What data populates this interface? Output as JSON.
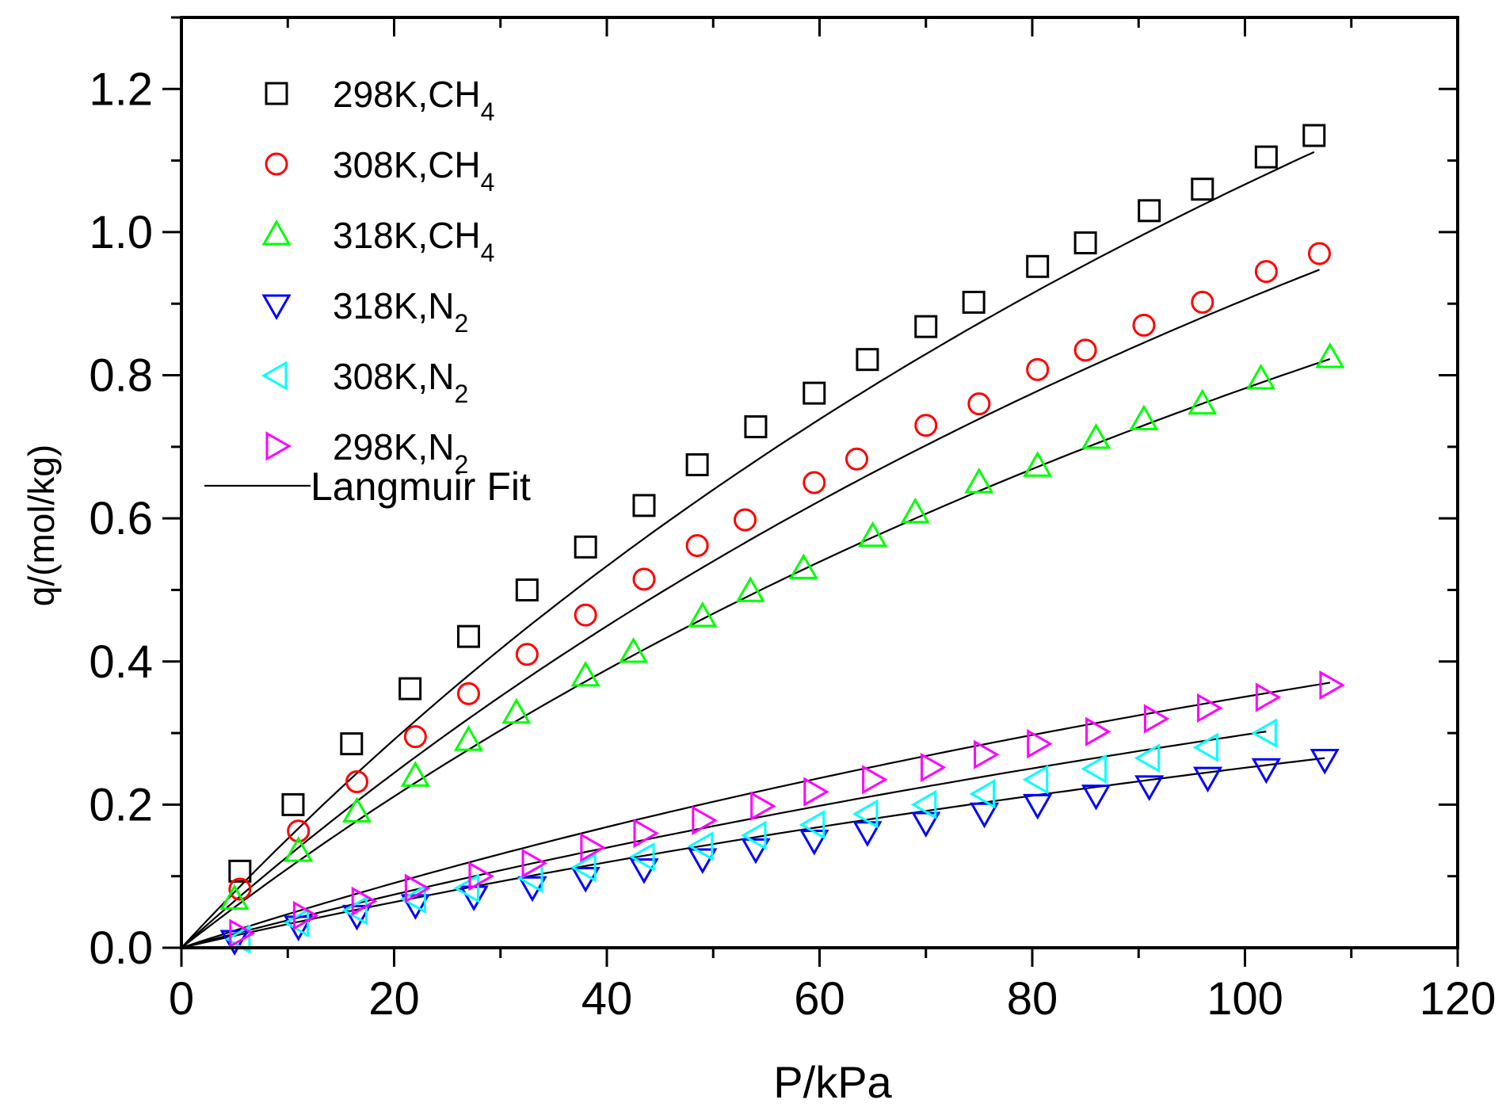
{
  "chart_data": {
    "type": "scatter",
    "title": "",
    "xlabel": "P/kPa",
    "ylabel": "q/(mol/kg)",
    "xlim": [
      0,
      120
    ],
    "ylim": [
      0,
      1.3
    ],
    "xticks": [
      0,
      20,
      40,
      60,
      80,
      100,
      120
    ],
    "xtick_labels": [
      "0",
      "20",
      "40",
      "60",
      "80",
      "100",
      "120"
    ],
    "yticks": [
      0.0,
      0.2,
      0.4,
      0.6,
      0.8,
      1.0,
      1.2
    ],
    "ytick_labels": [
      "0.0",
      "0.2",
      "0.4",
      "0.6",
      "0.8",
      "1.0",
      "1.2"
    ],
    "grid": false,
    "legend_position": "top-left",
    "fit_label": "Langmuir Fit",
    "series": [
      {
        "name": "298K,CH4",
        "label_main": "298K,CH",
        "label_sub": "4",
        "marker": "square",
        "color": "#000000",
        "x": [
          5.5,
          10.5,
          16.0,
          21.5,
          27.0,
          32.5,
          38.0,
          43.5,
          48.5,
          54.0,
          59.5,
          64.5,
          70.0,
          74.5,
          80.5,
          85.0,
          91.0,
          96.0,
          102.0,
          106.5
        ],
        "y": [
          0.107,
          0.2,
          0.285,
          0.362,
          0.435,
          0.5,
          0.56,
          0.618,
          0.675,
          0.728,
          0.775,
          0.822,
          0.868,
          0.902,
          0.952,
          0.985,
          1.03,
          1.06,
          1.105,
          1.135
        ],
        "fit_qm": 3.2,
        "fit_b": 0.005
      },
      {
        "name": "308K,CH4",
        "label_main": "308K,CH",
        "label_sub": "4",
        "marker": "circle",
        "color": "#ff0000",
        "x": [
          5.5,
          11.0,
          16.5,
          22.0,
          27.0,
          32.5,
          38.0,
          43.5,
          48.5,
          53.0,
          59.5,
          63.5,
          70.0,
          75.0,
          80.5,
          85.0,
          90.5,
          96.0,
          102.0,
          107.0
        ],
        "y": [
          0.082,
          0.163,
          0.232,
          0.295,
          0.355,
          0.41,
          0.465,
          0.515,
          0.562,
          0.598,
          0.65,
          0.683,
          0.73,
          0.76,
          0.808,
          0.835,
          0.87,
          0.902,
          0.945,
          0.97
        ],
        "fit_qm": 2.8,
        "fit_b": 0.00478
      },
      {
        "name": "318K,CH4",
        "label_main": "318K,CH",
        "label_sub": "4",
        "marker": "triangle-up",
        "color": "#00ff00",
        "x": [
          5.0,
          11.0,
          16.5,
          22.0,
          27.0,
          31.5,
          38.0,
          42.5,
          49.0,
          53.5,
          58.5,
          65.0,
          69.0,
          75.0,
          80.5,
          86.0,
          90.5,
          96.0,
          101.5,
          108.0
        ],
        "y": [
          0.068,
          0.135,
          0.19,
          0.24,
          0.29,
          0.328,
          0.38,
          0.413,
          0.463,
          0.498,
          0.53,
          0.575,
          0.608,
          0.65,
          0.673,
          0.712,
          0.738,
          0.76,
          0.795,
          0.825
        ],
        "fit_qm": 2.4,
        "fit_b": 0.00483
      },
      {
        "name": "318K,N2",
        "label_main": "318K,N",
        "label_sub": "2",
        "marker": "triangle-down",
        "color": "#0000ff",
        "x": [
          5.0,
          11.0,
          16.5,
          22.0,
          27.5,
          33.0,
          38.0,
          43.5,
          49.0,
          54.0,
          59.5,
          64.5,
          70.0,
          75.5,
          80.5,
          86.0,
          91.0,
          96.5,
          102.0,
          107.5
        ],
        "y": [
          0.01,
          0.03,
          0.045,
          0.06,
          0.072,
          0.085,
          0.098,
          0.11,
          0.124,
          0.138,
          0.15,
          0.162,
          0.175,
          0.188,
          0.2,
          0.213,
          0.226,
          0.238,
          0.25,
          0.263
        ],
        "fit_qm": 0.95,
        "fit_b": 0.0036
      },
      {
        "name": "308K,N2",
        "label_main": "308K,N",
        "label_sub": "2",
        "marker": "triangle-left",
        "color": "#00ffff",
        "x": [
          5.5,
          11.0,
          16.5,
          22.0,
          27.0,
          33.0,
          38.0,
          43.5,
          49.0,
          54.0,
          59.5,
          64.5,
          70.0,
          75.5,
          80.5,
          86.0,
          91.0,
          96.5,
          102.0
        ],
        "y": [
          0.012,
          0.035,
          0.052,
          0.068,
          0.083,
          0.097,
          0.112,
          0.127,
          0.142,
          0.157,
          0.172,
          0.187,
          0.2,
          0.215,
          0.235,
          0.25,
          0.265,
          0.28,
          0.3
        ],
        "fit_qm": 1.2,
        "fit_b": 0.0033
      },
      {
        "name": "298K,N2",
        "label_main": "298K,N",
        "label_sub": "2",
        "marker": "triangle-right",
        "color": "#ff00ff",
        "x": [
          5.5,
          11.5,
          17.0,
          22.0,
          28.0,
          33.0,
          38.5,
          43.5,
          49.0,
          54.5,
          59.5,
          65.0,
          70.5,
          75.5,
          80.5,
          86.0,
          91.5,
          96.5,
          102.0,
          108.0
        ],
        "y": [
          0.02,
          0.045,
          0.065,
          0.083,
          0.1,
          0.118,
          0.14,
          0.16,
          0.178,
          0.198,
          0.218,
          0.235,
          0.252,
          0.27,
          0.285,
          0.302,
          0.32,
          0.335,
          0.35,
          0.367
        ],
        "fit_qm": 1.25,
        "fit_b": 0.0039
      }
    ]
  }
}
